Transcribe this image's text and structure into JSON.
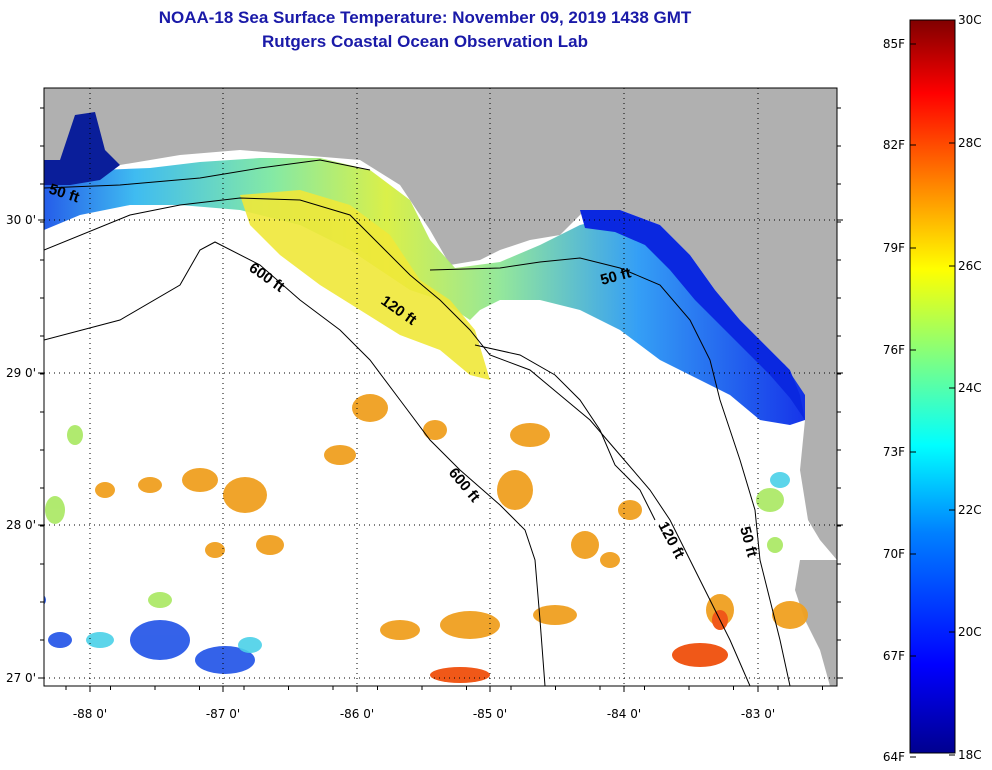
{
  "title": "NOAA-18 Sea Surface Temperature:  November 09, 2019 1438 GMT",
  "subtitle": "Rutgers Coastal Ocean Observation Lab",
  "map": {
    "latitude_labels": [
      "30 0'",
      "29 0'",
      "28 0'",
      "27 0'"
    ],
    "longitude_labels": [
      "-88 0'",
      "-87 0'",
      "-86 0'",
      "-85 0'",
      "-84 0'",
      "-83 0'"
    ],
    "contour_labels": [
      {
        "text": "50 ft"
      },
      {
        "text": "600 ft"
      },
      {
        "text": "120 ft"
      },
      {
        "text": "50 ft"
      },
      {
        "text": "600 ft"
      },
      {
        "text": "120 ft"
      },
      {
        "text": "50 ft"
      }
    ],
    "land_color": "#b0b0b0",
    "no_data_color": "#ffffff"
  },
  "colorbar": {
    "fahrenheit_labels": [
      "85F",
      "82F",
      "79F",
      "76F",
      "73F",
      "70F",
      "67F",
      "64F"
    ],
    "celsius_labels": [
      "30C",
      "28C",
      "26C",
      "24C",
      "22C",
      "20C",
      "18C"
    ],
    "range_c": [
      18,
      30
    ],
    "colors": [
      "#00008f",
      "#0000ff",
      "#0080ff",
      "#00ffff",
      "#80ff80",
      "#ffff00",
      "#ff8000",
      "#ff0000",
      "#800000"
    ]
  }
}
